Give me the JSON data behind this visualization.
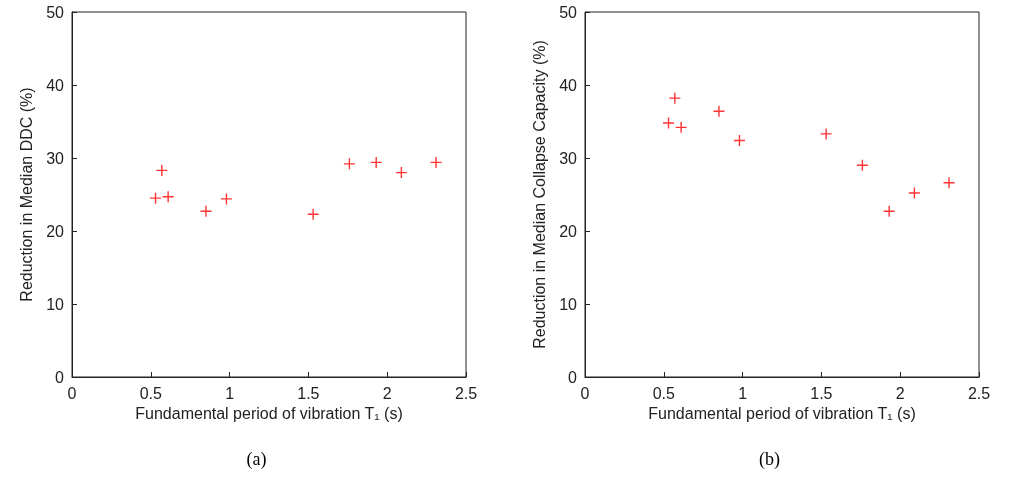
{
  "chart_data": [
    {
      "type": "scatter",
      "xlabel": "Fundamental period of vibration T₁ (s)",
      "ylabel": "Reduction in Median DDC (%)",
      "annotations": [
        "(a)"
      ],
      "x": [
        0.53,
        0.57,
        0.61,
        0.85,
        0.98,
        1.53,
        1.76,
        1.93,
        2.09,
        2.31
      ],
      "values": [
        24.5,
        28.3,
        24.7,
        22.7,
        24.4,
        22.3,
        29.2,
        29.4,
        28.0,
        29.4
      ],
      "color": "#ff0000",
      "marker": "cross",
      "xlim": [
        0,
        2.5
      ],
      "xticks": [
        0,
        0.5,
        1,
        1.5,
        2,
        2.5
      ],
      "ylim": [
        0,
        50
      ],
      "yticks": [
        0,
        10,
        20,
        30,
        40,
        50
      ]
    },
    {
      "type": "scatter",
      "xlabel": "Fundamental period of vibration T₁ (s)",
      "ylabel": "Reduction in Median Collapse Capacity (%)",
      "annotations": [
        "(b)"
      ],
      "x": [
        0.53,
        0.57,
        0.61,
        0.85,
        0.98,
        1.53,
        1.76,
        1.93,
        2.09,
        2.31
      ],
      "values": [
        34.8,
        38.2,
        34.2,
        36.4,
        32.4,
        33.3,
        29.0,
        22.7,
        25.2,
        26.6
      ],
      "color": "#ff0000",
      "marker": "cross",
      "xlim": [
        0,
        2.5
      ],
      "xticks": [
        0,
        0.5,
        1,
        1.5,
        2,
        2.5
      ],
      "ylim": [
        0,
        50
      ],
      "yticks": [
        0,
        10,
        20,
        30,
        40,
        50
      ]
    }
  ]
}
